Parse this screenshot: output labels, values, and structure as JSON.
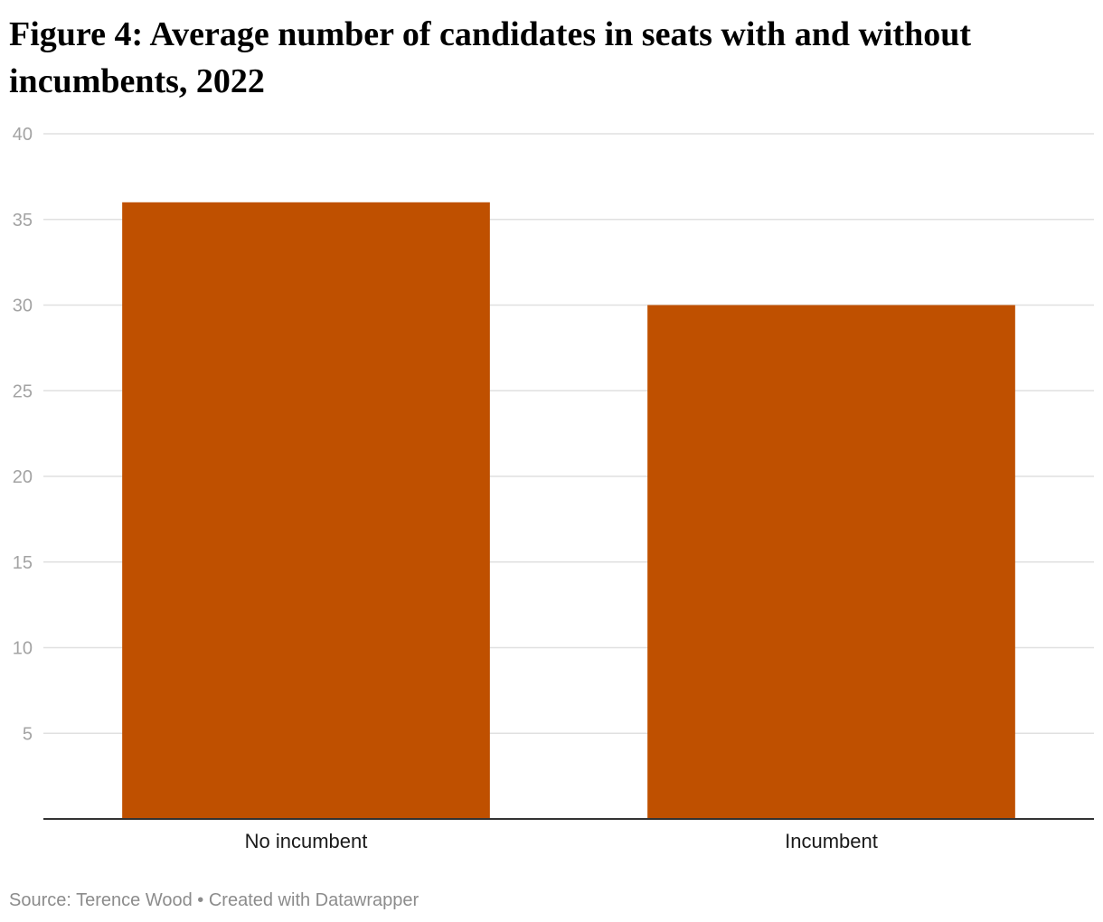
{
  "title": "Figure 4: Average number of candidates in seats with and without incumbents, 2022",
  "source": {
    "prefix": "Source: Terence Wood",
    "separator": " • ",
    "credit": "Created with Datawrapper"
  },
  "colors": {
    "bar": "#bf5000",
    "grid": "#e0e0e0",
    "baseline": "#333333",
    "tick_text": "#a3a3a3",
    "category_text": "#1a1a1a",
    "source_text": "#8c8c8c"
  },
  "chart_data": {
    "type": "bar",
    "categories": [
      "No incumbent",
      "Incumbent"
    ],
    "values": [
      36,
      30
    ],
    "title": "Figure 4: Average number of candidates in seats with and without incumbents, 2022",
    "xlabel": "",
    "ylabel": "",
    "ylim": [
      0,
      40
    ],
    "yticks": [
      "5",
      "10",
      "15",
      "20",
      "25",
      "30",
      "35",
      "40"
    ],
    "grid": true,
    "legend": "none"
  }
}
